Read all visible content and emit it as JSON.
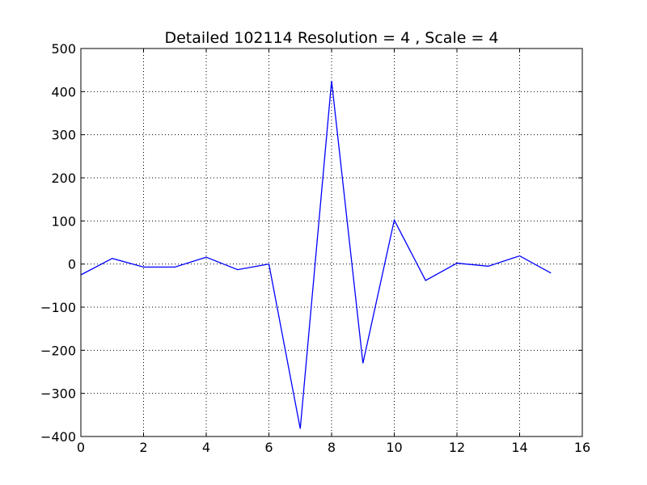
{
  "chart_data": {
    "type": "line",
    "title": "Detailed 102114 Resolution = 4 , Scale = 4",
    "xlabel": "",
    "ylabel": "",
    "xlim": [
      0,
      16
    ],
    "ylim": [
      -400,
      500
    ],
    "x_ticks": [
      0,
      2,
      4,
      6,
      8,
      10,
      12,
      14,
      16
    ],
    "y_ticks": [
      -400,
      -300,
      -200,
      -100,
      0,
      100,
      200,
      300,
      400,
      500
    ],
    "x_tick_labels": [
      "0",
      "2",
      "4",
      "6",
      "8",
      "10",
      "12",
      "14",
      "16"
    ],
    "y_tick_labels": [
      "−400",
      "−300",
      "−200",
      "−100",
      "0",
      "100",
      "200",
      "300",
      "400",
      "500"
    ],
    "grid": true,
    "legend": "none",
    "series": [
      {
        "color": "#0000ff",
        "x": [
          0,
          1,
          2,
          3,
          4,
          5,
          6,
          7,
          8,
          9,
          10,
          11,
          12,
          13,
          14,
          15
        ],
        "y": [
          -25,
          13,
          -7,
          -7,
          16,
          -13,
          0,
          -382,
          425,
          -230,
          102,
          -38,
          2,
          -5,
          19,
          -21
        ]
      }
    ]
  }
}
